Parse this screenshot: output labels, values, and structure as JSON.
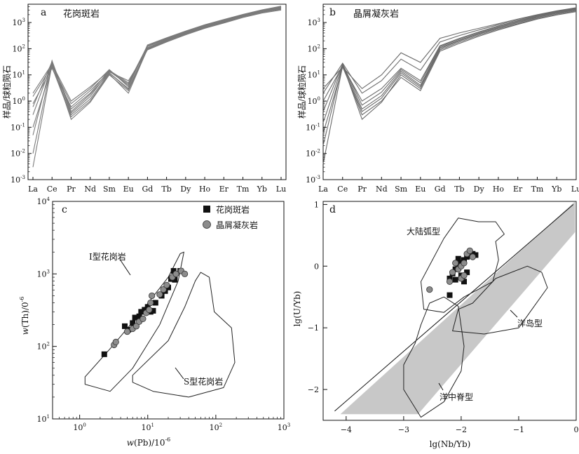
{
  "panels": {
    "a": {
      "letter": "a",
      "title": "花岗斑岩",
      "ylabel": "样品/球粒陨石",
      "x_ticks": [
        "La",
        "Ce",
        "Pr",
        "Nd",
        "Sm",
        "Eu",
        "Gd",
        "Tb",
        "Dy",
        "Ho",
        "Er",
        "Tm",
        "Yb",
        "Lu"
      ],
      "y_ticks": [
        {
          "base": "10",
          "exp": "-3"
        },
        {
          "base": "10",
          "exp": "-2"
        },
        {
          "base": "10",
          "exp": "-1"
        },
        {
          "base": "10",
          "exp": "0"
        },
        {
          "base": "10",
          "exp": "1"
        },
        {
          "base": "10",
          "exp": "2"
        },
        {
          "base": "10",
          "exp": "3"
        }
      ]
    },
    "b": {
      "letter": "b",
      "title": "晶屑凝灰岩",
      "ylabel": "样品/球粒陨石",
      "x_ticks": [
        "La",
        "Ce",
        "Pr",
        "Nd",
        "Sm",
        "Eu",
        "Gd",
        "Tb",
        "Dy",
        "Ho",
        "Er",
        "Tm",
        "Yb",
        "Lu"
      ],
      "y_ticks": [
        {
          "base": "10",
          "exp": "-3"
        },
        {
          "base": "10",
          "exp": "-2"
        },
        {
          "base": "10",
          "exp": "-1"
        },
        {
          "base": "10",
          "exp": "0"
        },
        {
          "base": "10",
          "exp": "1"
        },
        {
          "base": "10",
          "exp": "2"
        },
        {
          "base": "10",
          "exp": "3"
        }
      ]
    },
    "c": {
      "letter": "c",
      "xlabel": {
        "italic": "w",
        "rest": "(Pb)/10",
        "exp": "-6"
      },
      "ylabel": {
        "italic": "w",
        "rest": "(Th)/0",
        "exp": "-6"
      },
      "x_ticks": [
        {
          "base": "10",
          "exp": "0"
        },
        {
          "base": "10",
          "exp": "1"
        },
        {
          "base": "10",
          "exp": "2"
        },
        {
          "base": "10",
          "exp": "3"
        }
      ],
      "y_ticks": [
        {
          "base": "10",
          "exp": "1"
        },
        {
          "base": "10",
          "exp": "2"
        },
        {
          "base": "10",
          "exp": "3"
        },
        {
          "base": "10",
          "exp": "4"
        }
      ],
      "legend": [
        "花岗斑岩",
        "晶屑凝灰岩"
      ],
      "field_labels": [
        "I型花岗岩",
        "S型花岗岩"
      ]
    },
    "d": {
      "letter": "d",
      "xlabel": "lg(Nb/Yb)",
      "ylabel": "lg(U/Yb)",
      "x_ticks": [
        "−4",
        "−3",
        "−2",
        "−1",
        "0"
      ],
      "y_ticks": [
        "1",
        "0",
        "−1",
        "−2"
      ],
      "field_labels": [
        "大陆弧型",
        "洋岛型",
        "洋中脊型"
      ]
    }
  },
  "chart_data": [
    {
      "type": "line",
      "panel": "a",
      "title": "花岗斑岩",
      "ylabel": "样品/球粒陨石",
      "categories": [
        "La",
        "Ce",
        "Pr",
        "Nd",
        "Sm",
        "Eu",
        "Gd",
        "Tb",
        "Dy",
        "Ho",
        "Er",
        "Tm",
        "Yb",
        "Lu"
      ],
      "y_scale": "log",
      "ylim": [
        0.001,
        5000
      ],
      "series_color": "#7a7a7a",
      "series": [
        {
          "values": [
            0.003,
            25,
            0.3,
            1.2,
            12,
            3.0,
            110,
            220,
            400,
            700,
            1100,
            1800,
            2700,
            3600
          ]
        },
        {
          "values": [
            0.01,
            30,
            0.2,
            0.9,
            10,
            2.5,
            95,
            190,
            360,
            620,
            1000,
            1650,
            2450,
            3200
          ]
        },
        {
          "values": [
            0.05,
            35,
            0.35,
            1.5,
            14,
            4.0,
            125,
            240,
            430,
            760,
            1180,
            1900,
            2850,
            3900
          ]
        },
        {
          "values": [
            0.1,
            20,
            0.25,
            1.0,
            11,
            2.0,
            100,
            200,
            370,
            650,
            1050,
            1700,
            2500,
            3300
          ]
        },
        {
          "values": [
            0.3,
            28,
            0.5,
            2.0,
            15,
            5.0,
            130,
            250,
            450,
            800,
            1250,
            1950,
            2950,
            4000
          ]
        },
        {
          "values": [
            0.8,
            18,
            0.6,
            2.5,
            13,
            6.0,
            90,
            180,
            340,
            600,
            950,
            1550,
            2300,
            3000
          ]
        },
        {
          "values": [
            1.5,
            22,
            0.8,
            3.0,
            16,
            3.5,
            140,
            260,
            470,
            820,
            1300,
            2050,
            3050,
            4200
          ]
        },
        {
          "values": [
            0.6,
            32,
            0.4,
            1.8,
            12,
            2.8,
            105,
            210,
            390,
            680,
            1080,
            1750,
            2600,
            3450
          ]
        },
        {
          "values": [
            2.0,
            26,
            1.0,
            3.5,
            14,
            4.5,
            120,
            230,
            420,
            740,
            1150,
            1850,
            2750,
            3700
          ]
        }
      ]
    },
    {
      "type": "line",
      "panel": "b",
      "title": "晶屑凝灰岩",
      "ylabel": "样品/球粒陨石",
      "categories": [
        "La",
        "Ce",
        "Pr",
        "Nd",
        "Sm",
        "Eu",
        "Gd",
        "Tb",
        "Dy",
        "Ho",
        "Er",
        "Tm",
        "Yb",
        "Lu"
      ],
      "y_scale": "log",
      "ylim": [
        0.001,
        5000
      ],
      "series_color": "#6a6a6a",
      "series": [
        {
          "values": [
            0.004,
            22,
            0.3,
            1.0,
            8,
            2.5,
            80,
            160,
            300,
            520,
            850,
            1350,
            1950,
            2600
          ]
        },
        {
          "values": [
            0.02,
            25,
            0.2,
            0.9,
            10,
            3.0,
            90,
            180,
            330,
            570,
            900,
            1450,
            2100,
            2800
          ]
        },
        {
          "values": [
            0.06,
            20,
            0.4,
            1.3,
            12,
            3.5,
            100,
            200,
            360,
            620,
            980,
            1550,
            2250,
            3000
          ]
        },
        {
          "values": [
            0.15,
            24,
            0.5,
            1.6,
            14,
            4.0,
            110,
            210,
            380,
            650,
            1020,
            1600,
            2350,
            3150
          ]
        },
        {
          "values": [
            0.4,
            26,
            0.7,
            2.2,
            16,
            5.0,
            120,
            230,
            410,
            700,
            1100,
            1700,
            2500,
            3300
          ]
        },
        {
          "values": [
            1.0,
            22,
            1.0,
            3.0,
            18,
            6.0,
            130,
            250,
            440,
            740,
            1150,
            1800,
            2600,
            3450
          ]
        },
        {
          "values": [
            2.0,
            28,
            2.0,
            6.0,
            40,
            15,
            180,
            320,
            520,
            820,
            1250,
            1900,
            2700,
            3600
          ]
        },
        {
          "values": [
            3.0,
            20,
            3.0,
            10,
            70,
            30,
            250,
            400,
            600,
            900,
            1350,
            2000,
            2800,
            3700
          ]
        }
      ]
    },
    {
      "type": "scatter",
      "panel": "c",
      "x_scale": "log",
      "y_scale": "log",
      "xlim": [
        0.4,
        1000
      ],
      "ylim": [
        10,
        10000
      ],
      "xlabel": "w(Pb)/10-6",
      "ylabel": "w(Th)/0-6",
      "legend_position": "top-right",
      "series": [
        {
          "name": "花岗斑岩",
          "marker": "square",
          "color": "#111111",
          "points": [
            [
              2.3,
              78
            ],
            [
              4.6,
              190
            ],
            [
              5.2,
              170
            ],
            [
              6.0,
              210
            ],
            [
              6.5,
              250
            ],
            [
              7.5,
              260
            ],
            [
              8.0,
              300
            ],
            [
              9.0,
              320
            ],
            [
              10,
              350
            ],
            [
              11,
              300
            ],
            [
              12,
              310
            ],
            [
              13,
              400
            ],
            [
              16,
              500
            ],
            [
              18,
              580
            ],
            [
              20,
              650
            ],
            [
              22,
              850
            ],
            [
              24,
              1100
            ],
            [
              25,
              830
            ],
            [
              30,
              1100
            ]
          ]
        },
        {
          "name": "晶屑凝灰岩",
          "marker": "circle",
          "color": "#8c8c8c",
          "points": [
            [
              3.2,
              105
            ],
            [
              3.4,
              115
            ],
            [
              5.0,
              160
            ],
            [
              6.0,
              175
            ],
            [
              6.8,
              190
            ],
            [
              7.5,
              220
            ],
            [
              8.5,
              240
            ],
            [
              9.5,
              290
            ],
            [
              10.5,
              320
            ],
            [
              11,
              400
            ],
            [
              11.5,
              500
            ],
            [
              15,
              520
            ],
            [
              17,
              610
            ],
            [
              19,
              700
            ],
            [
              23,
              900
            ],
            [
              26,
              1000
            ],
            [
              31,
              1100
            ],
            [
              35,
              1000
            ]
          ]
        }
      ],
      "fields": [
        {
          "name": "I型花岗岩",
          "polygon": [
            [
              1.2,
              38
            ],
            [
              3.0,
              100
            ],
            [
              8,
              300
            ],
            [
              20,
              900
            ],
            [
              30,
              1900
            ],
            [
              34,
              2000
            ],
            [
              28,
              800
            ],
            [
              15,
              200
            ],
            [
              6,
              50
            ],
            [
              2.8,
              24
            ],
            [
              1.2,
              30
            ]
          ]
        },
        {
          "name": "S型花岗岩",
          "polygon": [
            [
              6,
              40
            ],
            [
              20,
              120
            ],
            [
              35,
              350
            ],
            [
              50,
              800
            ],
            [
              60,
              1050
            ],
            [
              80,
              900
            ],
            [
              95,
              300
            ],
            [
              170,
              180
            ],
            [
              190,
              60
            ],
            [
              130,
              27
            ],
            [
              40,
              20
            ],
            [
              12,
              24
            ],
            [
              6,
              32
            ]
          ]
        }
      ]
    },
    {
      "type": "scatter",
      "panel": "d",
      "xlim": [
        -4.4,
        0
      ],
      "ylim": [
        -2.5,
        1.05
      ],
      "xlabel": "lg(Nb/Yb)",
      "ylabel": "lg(U/Yb)",
      "series": [
        {
          "marker": "square",
          "color": "#111111",
          "points": [
            [
              -2.2,
              -0.47
            ],
            [
              -2.2,
              -0.2
            ],
            [
              -2.15,
              -0.12
            ],
            [
              -2.1,
              -0.05
            ],
            [
              -2.05,
              0.0
            ],
            [
              -2.0,
              0.05
            ],
            [
              -1.95,
              0.1
            ],
            [
              -1.9,
              0.15
            ],
            [
              -1.85,
              0.18
            ],
            [
              -1.8,
              0.2
            ],
            [
              -2.0,
              -0.15
            ],
            [
              -1.95,
              -0.25
            ],
            [
              -1.9,
              -0.1
            ],
            [
              -2.05,
              0.12
            ],
            [
              -1.75,
              0.18
            ],
            [
              -2.1,
              -0.22
            ]
          ]
        },
        {
          "marker": "circle",
          "color": "#8c8c8c",
          "points": [
            [
              -2.55,
              -0.38
            ],
            [
              -2.2,
              -0.25
            ],
            [
              -2.15,
              -0.1
            ],
            [
              -2.1,
              0.05
            ],
            [
              -2.05,
              -0.05
            ],
            [
              -2.0,
              0.0
            ],
            [
              -1.95,
              0.05
            ],
            [
              -1.9,
              0.2
            ],
            [
              -1.85,
              0.25
            ],
            [
              -1.8,
              0.15
            ],
            [
              -2.0,
              -0.2
            ],
            [
              -1.95,
              -0.15
            ]
          ]
        }
      ],
      "fields": [
        {
          "name": "大陆弧型",
          "polygon": [
            [
              -2.65,
              -0.7
            ],
            [
              -2.7,
              -0.25
            ],
            [
              -2.5,
              0.1
            ],
            [
              -2.3,
              0.45
            ],
            [
              -2.05,
              0.78
            ],
            [
              -1.7,
              0.72
            ],
            [
              -1.4,
              0.72
            ],
            [
              -1.25,
              0.52
            ],
            [
              -1.4,
              0.4
            ],
            [
              -1.35,
              0.1
            ],
            [
              -1.45,
              -0.25
            ],
            [
              -1.95,
              -0.5
            ],
            [
              -2.3,
              -0.75
            ],
            [
              -2.65,
              -0.7
            ]
          ]
        },
        {
          "name": "洋岛型",
          "polygon": [
            [
              -2.15,
              -1.05
            ],
            [
              -2.05,
              -0.7
            ],
            [
              -1.8,
              -0.6
            ],
            [
              -1.4,
              -0.2
            ],
            [
              -0.85,
              0.0
            ],
            [
              -0.6,
              -0.1
            ],
            [
              -0.5,
              -0.35
            ],
            [
              -1.0,
              -1.0
            ],
            [
              -1.6,
              -1.1
            ],
            [
              -2.15,
              -1.05
            ]
          ]
        },
        {
          "name": "洋中脊型",
          "polygon": [
            [
              -3.0,
              -2.0
            ],
            [
              -2.7,
              -2.45
            ],
            [
              -2.3,
              -2.2
            ],
            [
              -2.0,
              -1.7
            ],
            [
              -1.95,
              -1.3
            ],
            [
              -2.05,
              -0.65
            ],
            [
              -2.3,
              -0.5
            ],
            [
              -2.55,
              -0.6
            ],
            [
              -2.7,
              -0.95
            ],
            [
              -2.8,
              -1.25
            ],
            [
              -3.0,
              -1.6
            ],
            [
              -3.0,
              -2.0
            ]
          ]
        }
      ],
      "mantle_array": [
        [
          -4.1,
          -2.4
        ],
        [
          -2.75,
          -2.4
        ],
        [
          -0.02,
          0.55
        ],
        [
          -0.02,
          1.05
        ],
        [
          -4.1,
          -2.4
        ]
      ],
      "reference_line": [
        [
          -4.2,
          -2.35
        ],
        [
          -0.05,
          1.0
        ]
      ]
    }
  ]
}
